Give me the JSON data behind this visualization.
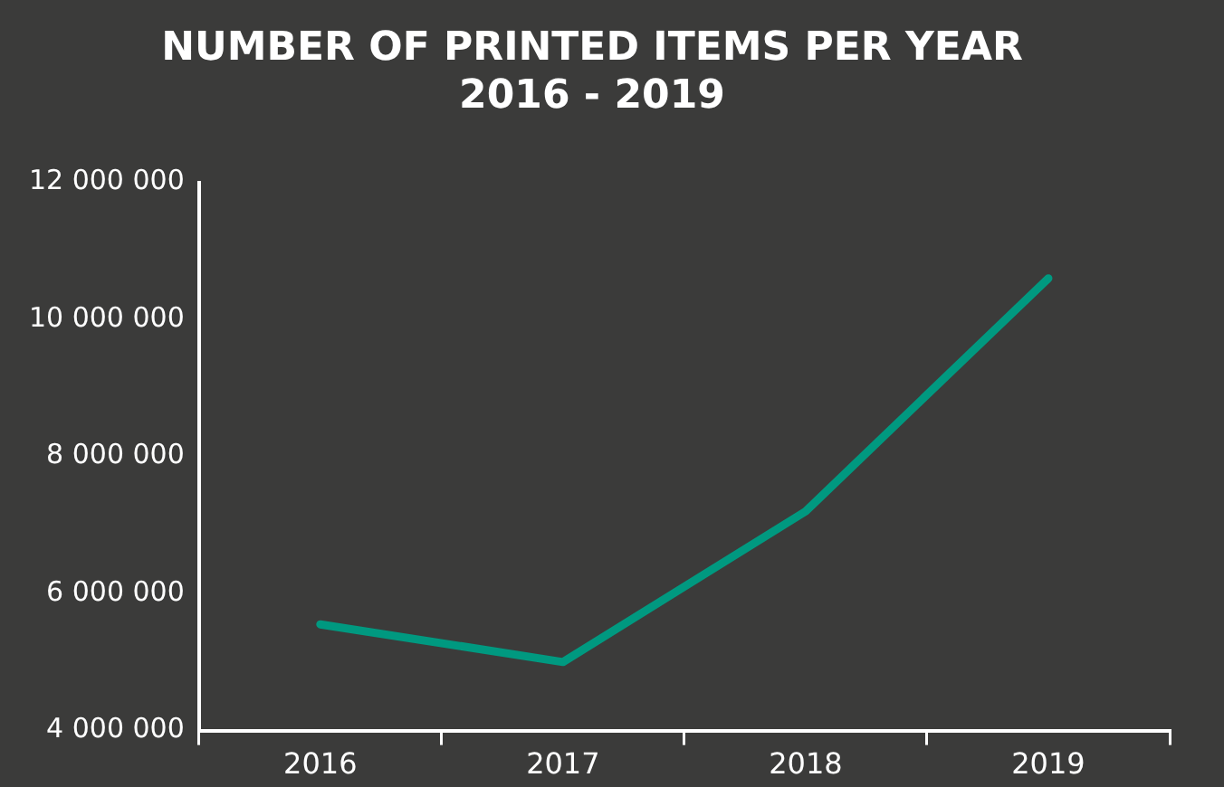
{
  "chart_data": {
    "type": "line",
    "title": "NUMBER OF PRINTED ITEMS PER YEAR",
    "subtitle": "2016 - 2019",
    "categories": [
      "2016",
      "2017",
      "2018",
      "2019"
    ],
    "series": [
      {
        "color": "#009980",
        "values": [
          5550000,
          5000000,
          7200000,
          10600000
        ]
      }
    ],
    "ylim": [
      4000000,
      12000000
    ],
    "yticks": [
      {
        "value": 4000000,
        "label": "4 000 000"
      },
      {
        "value": 6000000,
        "label": "6 000 000"
      },
      {
        "value": 8000000,
        "label": "8 000 000"
      },
      {
        "value": 10000000,
        "label": "10 000 000"
      },
      {
        "value": 12000000,
        "label": "12 000 000"
      }
    ],
    "grid": false,
    "legend": false,
    "marker": "none",
    "line_style": "solid"
  }
}
